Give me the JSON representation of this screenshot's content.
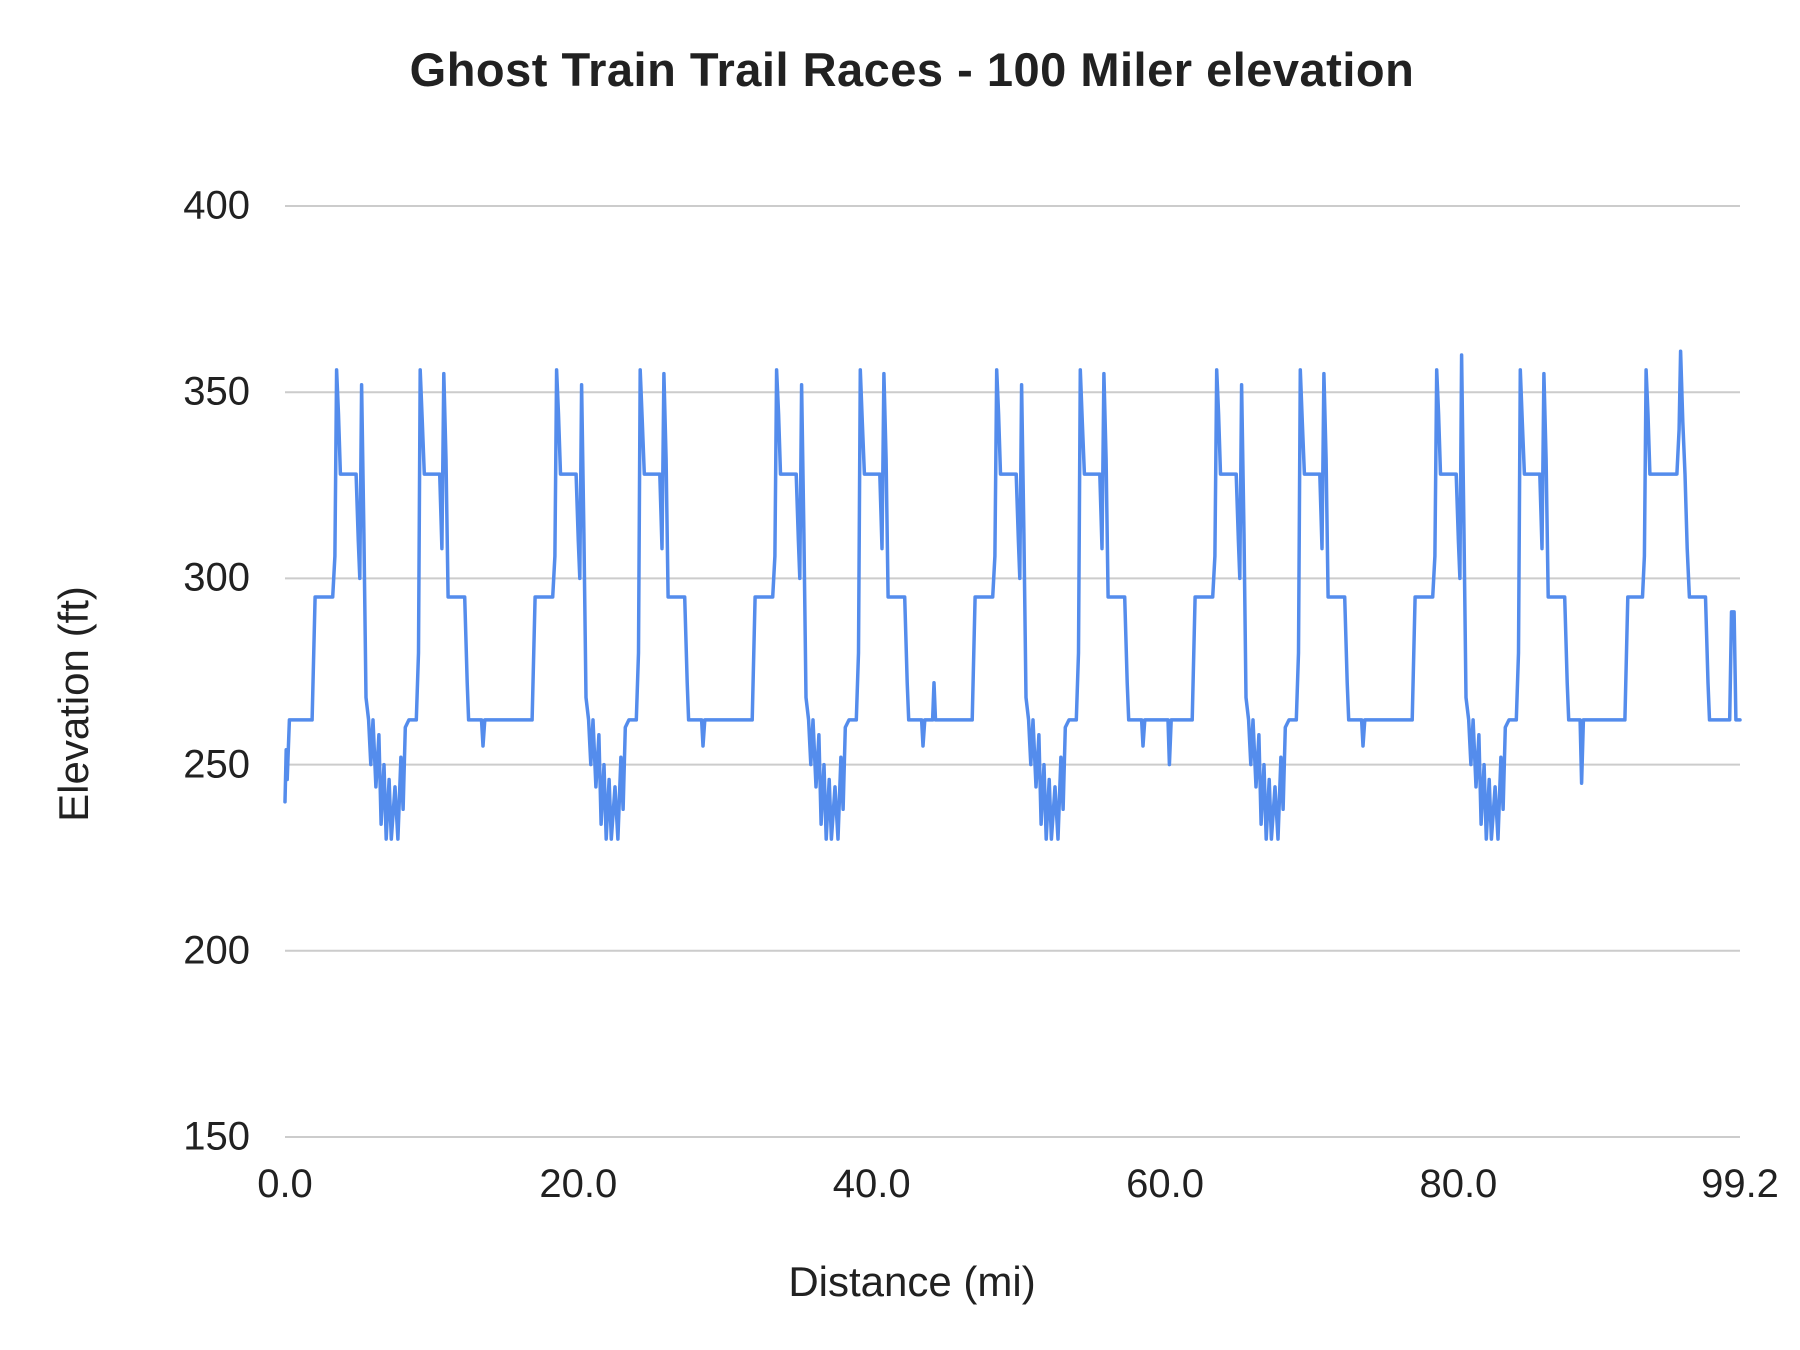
{
  "chart_data": {
    "type": "line",
    "title": "Ghost Train Trail Races - 100 Miler elevation",
    "xlabel": "Distance (mi)",
    "ylabel": "Elevation (ft)",
    "xlim": [
      0,
      99.2
    ],
    "ylim": [
      150,
      400
    ],
    "grid": "horizontal-only",
    "legend": "none",
    "x_ticks": [
      {
        "value": 0,
        "label": "0.0"
      },
      {
        "value": 20,
        "label": "20.0"
      },
      {
        "value": 40,
        "label": "40.0"
      },
      {
        "value": 60,
        "label": "60.0"
      },
      {
        "value": 80,
        "label": "80.0"
      },
      {
        "value": 99.2,
        "label": "99.2"
      }
    ],
    "y_ticks": [
      {
        "value": 400,
        "label": "400"
      },
      {
        "value": 350,
        "label": "350"
      },
      {
        "value": 300,
        "label": "300"
      },
      {
        "value": 250,
        "label": "250"
      },
      {
        "value": 200,
        "label": "200"
      },
      {
        "value": 150,
        "label": "150"
      }
    ],
    "colors": {
      "line": "#548cec",
      "grid": "#cccccc",
      "text": "#212121",
      "background": "#ffffff"
    },
    "series": [
      {
        "name": "Elevation",
        "points": [
          [
            0.0,
            240
          ],
          [
            0.08,
            254
          ],
          [
            0.15,
            246
          ],
          [
            0.3,
            262
          ],
          [
            1.85,
            262
          ],
          [
            2.05,
            295
          ],
          [
            3.25,
            295
          ],
          [
            3.4,
            306
          ],
          [
            3.52,
            356
          ],
          [
            3.65,
            344
          ],
          [
            3.78,
            328
          ],
          [
            4.85,
            328
          ],
          [
            5.0,
            310
          ],
          [
            5.1,
            300
          ],
          [
            5.22,
            352
          ],
          [
            5.38,
            312
          ],
          [
            5.52,
            268
          ],
          [
            5.7,
            262
          ],
          [
            5.85,
            250
          ],
          [
            6.0,
            262
          ],
          [
            6.2,
            244
          ],
          [
            6.4,
            258
          ],
          [
            6.55,
            234
          ],
          [
            6.75,
            250
          ],
          [
            6.9,
            230
          ],
          [
            7.1,
            246
          ],
          [
            7.25,
            230
          ],
          [
            7.5,
            244
          ],
          [
            7.7,
            230
          ],
          [
            7.9,
            252
          ],
          [
            8.05,
            238
          ],
          [
            8.2,
            260
          ],
          [
            8.45,
            262
          ],
          [
            8.95,
            262
          ],
          [
            9.1,
            280
          ],
          [
            9.22,
            356
          ],
          [
            9.36,
            342
          ],
          [
            9.5,
            328
          ],
          [
            10.55,
            328
          ],
          [
            10.7,
            308
          ],
          [
            10.83,
            355
          ],
          [
            10.98,
            332
          ],
          [
            11.12,
            295
          ],
          [
            12.25,
            295
          ],
          [
            12.42,
            272
          ],
          [
            12.52,
            262
          ],
          [
            13.4,
            262
          ],
          [
            13.5,
            255
          ],
          [
            13.62,
            262
          ],
          [
            14.9,
            262
          ],
          [
            16.85,
            262
          ],
          [
            17.05,
            295
          ],
          [
            18.25,
            295
          ],
          [
            18.4,
            306
          ],
          [
            18.52,
            356
          ],
          [
            18.65,
            344
          ],
          [
            18.78,
            328
          ],
          [
            19.85,
            328
          ],
          [
            20.0,
            310
          ],
          [
            20.1,
            300
          ],
          [
            20.22,
            352
          ],
          [
            20.38,
            312
          ],
          [
            20.52,
            268
          ],
          [
            20.7,
            262
          ],
          [
            20.85,
            250
          ],
          [
            21.0,
            262
          ],
          [
            21.2,
            244
          ],
          [
            21.4,
            258
          ],
          [
            21.55,
            234
          ],
          [
            21.75,
            250
          ],
          [
            21.9,
            230
          ],
          [
            22.1,
            246
          ],
          [
            22.25,
            230
          ],
          [
            22.5,
            244
          ],
          [
            22.7,
            230
          ],
          [
            22.9,
            252
          ],
          [
            23.05,
            238
          ],
          [
            23.2,
            260
          ],
          [
            23.45,
            262
          ],
          [
            23.95,
            262
          ],
          [
            24.1,
            280
          ],
          [
            24.22,
            356
          ],
          [
            24.36,
            342
          ],
          [
            24.5,
            328
          ],
          [
            25.55,
            328
          ],
          [
            25.7,
            308
          ],
          [
            25.83,
            355
          ],
          [
            25.98,
            332
          ],
          [
            26.12,
            295
          ],
          [
            27.25,
            295
          ],
          [
            27.42,
            272
          ],
          [
            27.52,
            262
          ],
          [
            28.4,
            262
          ],
          [
            28.5,
            255
          ],
          [
            28.62,
            262
          ],
          [
            29.9,
            262
          ],
          [
            31.85,
            262
          ],
          [
            32.05,
            295
          ],
          [
            33.25,
            295
          ],
          [
            33.4,
            306
          ],
          [
            33.52,
            356
          ],
          [
            33.65,
            344
          ],
          [
            33.78,
            328
          ],
          [
            34.85,
            328
          ],
          [
            35.0,
            310
          ],
          [
            35.1,
            300
          ],
          [
            35.22,
            352
          ],
          [
            35.38,
            312
          ],
          [
            35.52,
            268
          ],
          [
            35.7,
            262
          ],
          [
            35.85,
            250
          ],
          [
            36.0,
            262
          ],
          [
            36.2,
            244
          ],
          [
            36.4,
            258
          ],
          [
            36.55,
            234
          ],
          [
            36.75,
            250
          ],
          [
            36.9,
            230
          ],
          [
            37.1,
            246
          ],
          [
            37.25,
            230
          ],
          [
            37.5,
            244
          ],
          [
            37.7,
            230
          ],
          [
            37.9,
            252
          ],
          [
            38.05,
            238
          ],
          [
            38.2,
            260
          ],
          [
            38.45,
            262
          ],
          [
            38.95,
            262
          ],
          [
            39.1,
            280
          ],
          [
            39.22,
            356
          ],
          [
            39.36,
            342
          ],
          [
            39.5,
            328
          ],
          [
            40.55,
            328
          ],
          [
            40.7,
            308
          ],
          [
            40.83,
            355
          ],
          [
            40.98,
            332
          ],
          [
            41.12,
            295
          ],
          [
            42.25,
            295
          ],
          [
            42.42,
            272
          ],
          [
            42.52,
            262
          ],
          [
            43.4,
            262
          ],
          [
            43.5,
            255
          ],
          [
            43.62,
            262
          ],
          [
            44.15,
            262
          ],
          [
            44.25,
            272
          ],
          [
            44.35,
            262
          ],
          [
            44.9,
            262
          ],
          [
            46.85,
            262
          ],
          [
            47.05,
            295
          ],
          [
            48.25,
            295
          ],
          [
            48.4,
            306
          ],
          [
            48.52,
            356
          ],
          [
            48.65,
            344
          ],
          [
            48.78,
            328
          ],
          [
            49.85,
            328
          ],
          [
            50.0,
            310
          ],
          [
            50.1,
            300
          ],
          [
            50.22,
            352
          ],
          [
            50.38,
            312
          ],
          [
            50.52,
            268
          ],
          [
            50.7,
            262
          ],
          [
            50.85,
            250
          ],
          [
            51.0,
            262
          ],
          [
            51.2,
            244
          ],
          [
            51.4,
            258
          ],
          [
            51.55,
            234
          ],
          [
            51.75,
            250
          ],
          [
            51.9,
            230
          ],
          [
            52.1,
            246
          ],
          [
            52.25,
            230
          ],
          [
            52.5,
            244
          ],
          [
            52.7,
            230
          ],
          [
            52.9,
            252
          ],
          [
            53.05,
            238
          ],
          [
            53.2,
            260
          ],
          [
            53.45,
            262
          ],
          [
            53.95,
            262
          ],
          [
            54.1,
            280
          ],
          [
            54.22,
            356
          ],
          [
            54.36,
            342
          ],
          [
            54.5,
            328
          ],
          [
            55.55,
            328
          ],
          [
            55.7,
            308
          ],
          [
            55.83,
            355
          ],
          [
            55.98,
            332
          ],
          [
            56.12,
            295
          ],
          [
            57.25,
            295
          ],
          [
            57.42,
            272
          ],
          [
            57.52,
            262
          ],
          [
            58.4,
            262
          ],
          [
            58.5,
            255
          ],
          [
            58.62,
            262
          ],
          [
            59.9,
            262
          ],
          [
            60.2,
            262
          ],
          [
            60.3,
            250
          ],
          [
            60.42,
            262
          ],
          [
            61.85,
            262
          ],
          [
            62.05,
            295
          ],
          [
            63.25,
            295
          ],
          [
            63.4,
            306
          ],
          [
            63.52,
            356
          ],
          [
            63.65,
            344
          ],
          [
            63.78,
            328
          ],
          [
            64.85,
            328
          ],
          [
            65.0,
            310
          ],
          [
            65.1,
            300
          ],
          [
            65.22,
            352
          ],
          [
            65.38,
            312
          ],
          [
            65.52,
            268
          ],
          [
            65.7,
            262
          ],
          [
            65.85,
            250
          ],
          [
            66.0,
            262
          ],
          [
            66.2,
            244
          ],
          [
            66.4,
            258
          ],
          [
            66.55,
            234
          ],
          [
            66.75,
            250
          ],
          [
            66.9,
            230
          ],
          [
            67.1,
            246
          ],
          [
            67.25,
            230
          ],
          [
            67.5,
            244
          ],
          [
            67.7,
            230
          ],
          [
            67.9,
            252
          ],
          [
            68.05,
            238
          ],
          [
            68.2,
            260
          ],
          [
            68.45,
            262
          ],
          [
            68.95,
            262
          ],
          [
            69.1,
            280
          ],
          [
            69.22,
            356
          ],
          [
            69.36,
            342
          ],
          [
            69.5,
            328
          ],
          [
            70.55,
            328
          ],
          [
            70.7,
            308
          ],
          [
            70.83,
            355
          ],
          [
            70.98,
            332
          ],
          [
            71.12,
            295
          ],
          [
            72.25,
            295
          ],
          [
            72.42,
            272
          ],
          [
            72.52,
            262
          ],
          [
            73.4,
            262
          ],
          [
            73.5,
            255
          ],
          [
            73.62,
            262
          ],
          [
            74.9,
            262
          ],
          [
            76.85,
            262
          ],
          [
            77.05,
            295
          ],
          [
            78.25,
            295
          ],
          [
            78.4,
            306
          ],
          [
            78.52,
            356
          ],
          [
            78.65,
            344
          ],
          [
            78.78,
            328
          ],
          [
            79.85,
            328
          ],
          [
            80.0,
            310
          ],
          [
            80.1,
            300
          ],
          [
            80.22,
            360
          ],
          [
            80.38,
            312
          ],
          [
            80.52,
            268
          ],
          [
            80.7,
            262
          ],
          [
            80.85,
            250
          ],
          [
            81.0,
            262
          ],
          [
            81.2,
            244
          ],
          [
            81.4,
            258
          ],
          [
            81.55,
            234
          ],
          [
            81.75,
            250
          ],
          [
            81.9,
            230
          ],
          [
            82.1,
            246
          ],
          [
            82.25,
            230
          ],
          [
            82.5,
            244
          ],
          [
            82.7,
            230
          ],
          [
            82.9,
            252
          ],
          [
            83.05,
            238
          ],
          [
            83.2,
            260
          ],
          [
            83.45,
            262
          ],
          [
            83.95,
            262
          ],
          [
            84.1,
            280
          ],
          [
            84.22,
            356
          ],
          [
            84.36,
            342
          ],
          [
            84.5,
            328
          ],
          [
            85.55,
            328
          ],
          [
            85.7,
            308
          ],
          [
            85.83,
            355
          ],
          [
            85.98,
            332
          ],
          [
            86.12,
            295
          ],
          [
            87.25,
            295
          ],
          [
            87.42,
            272
          ],
          [
            87.52,
            262
          ],
          [
            88.3,
            262
          ],
          [
            88.4,
            245
          ],
          [
            88.52,
            262
          ],
          [
            89.9,
            262
          ],
          [
            91.35,
            262
          ],
          [
            91.55,
            295
          ],
          [
            92.55,
            295
          ],
          [
            92.68,
            306
          ],
          [
            92.8,
            356
          ],
          [
            92.93,
            344
          ],
          [
            93.06,
            328
          ],
          [
            94.9,
            328
          ],
          [
            95.05,
            340
          ],
          [
            95.15,
            361
          ],
          [
            95.3,
            342
          ],
          [
            95.45,
            328
          ],
          [
            95.6,
            308
          ],
          [
            95.75,
            295
          ],
          [
            96.85,
            295
          ],
          [
            97.02,
            272
          ],
          [
            97.12,
            262
          ],
          [
            98.5,
            262
          ],
          [
            98.62,
            291
          ],
          [
            98.8,
            291
          ],
          [
            98.92,
            262
          ],
          [
            99.2,
            262
          ]
        ]
      }
    ]
  }
}
